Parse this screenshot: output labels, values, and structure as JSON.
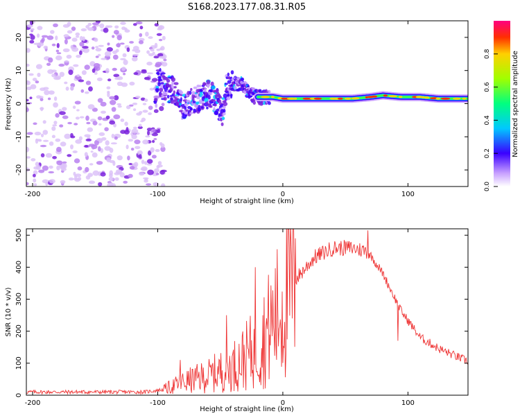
{
  "figure_title": "S168.2023.177.08.31.R05",
  "colors": {
    "snr_line": "#ee3333",
    "axis": "#000000"
  },
  "chart_data": [
    {
      "type": "heatmap",
      "name": "spectrogram",
      "xlabel": "Height of straight line (km)",
      "ylabel": "Frequency (Hz)",
      "xlim": [
        -205,
        148
      ],
      "ylim": [
        -25,
        25
      ],
      "xticks": [
        -200,
        -100,
        0,
        100
      ],
      "yticks": [
        -20,
        -10,
        0,
        10,
        20
      ],
      "xtick_labels": [
        "-200",
        "-100",
        "0",
        "100"
      ],
      "ytick_labels": [
        "-20",
        "-10",
        "0",
        "10",
        "20"
      ],
      "noise_region_km": [
        -205,
        -100
      ],
      "signal_track": [
        {
          "x": -100,
          "y": 8
        },
        {
          "x": -95,
          "y": 5
        },
        {
          "x": -88,
          "y": 4
        },
        {
          "x": -80,
          "y": -1
        },
        {
          "x": -72,
          "y": 1
        },
        {
          "x": -65,
          "y": 2
        },
        {
          "x": -58,
          "y": 3
        },
        {
          "x": -52,
          "y": 0
        },
        {
          "x": -48,
          "y": -3
        },
        {
          "x": -45,
          "y": 5
        },
        {
          "x": -38,
          "y": 6
        },
        {
          "x": -32,
          "y": 6
        },
        {
          "x": -28,
          "y": 4
        },
        {
          "x": -22,
          "y": 2
        },
        {
          "x": -15,
          "y": 2
        },
        {
          "x": -8,
          "y": 2
        },
        {
          "x": 0,
          "y": 1.5
        },
        {
          "x": 10,
          "y": 1.5
        },
        {
          "x": 20,
          "y": 1.5
        },
        {
          "x": 35,
          "y": 1.5
        },
        {
          "x": 55,
          "y": 1.5
        },
        {
          "x": 70,
          "y": 2
        },
        {
          "x": 80,
          "y": 2.5
        },
        {
          "x": 95,
          "y": 2
        },
        {
          "x": 110,
          "y": 2
        },
        {
          "x": 125,
          "y": 1.5
        },
        {
          "x": 148,
          "y": 1.5
        }
      ],
      "colorbar": {
        "label": "Normalized spectral amplitude",
        "ticks": [
          "0.0",
          "0.2",
          "0.4",
          "0.6",
          "0.8"
        ],
        "range": [
          0,
          1
        ]
      }
    },
    {
      "type": "line",
      "name": "snr",
      "xlabel": "Height of straight line (km)",
      "ylabel": "SNR (10 * v/v)",
      "xlim": [
        -205,
        148
      ],
      "ylim": [
        0,
        520
      ],
      "xticks": [
        -200,
        -100,
        0,
        100
      ],
      "yticks": [
        0,
        100,
        200,
        300,
        400,
        500
      ],
      "xtick_labels": [
        "-200",
        "-100",
        "0",
        "100"
      ],
      "ytick_labels": [
        "0",
        "100",
        "200",
        "300",
        "400",
        "500"
      ],
      "envelope": [
        {
          "x": -205,
          "y": 10
        },
        {
          "x": -110,
          "y": 10
        },
        {
          "x": -95,
          "y": 18
        },
        {
          "x": -80,
          "y": 40
        },
        {
          "x": -60,
          "y": 60
        },
        {
          "x": -40,
          "y": 90
        },
        {
          "x": -20,
          "y": 150
        },
        {
          "x": 0,
          "y": 280
        },
        {
          "x": 10,
          "y": 360
        },
        {
          "x": 25,
          "y": 430
        },
        {
          "x": 40,
          "y": 460
        },
        {
          "x": 55,
          "y": 460
        },
        {
          "x": 68,
          "y": 450
        },
        {
          "x": 80,
          "y": 380
        },
        {
          "x": 95,
          "y": 260
        },
        {
          "x": 110,
          "y": 180
        },
        {
          "x": 125,
          "y": 145
        },
        {
          "x": 148,
          "y": 105
        }
      ],
      "spikes": [
        {
          "x": -82,
          "y": 110
        },
        {
          "x": -45,
          "y": 250
        },
        {
          "x": -22,
          "y": 400
        },
        {
          "x": 10,
          "y": 490
        },
        {
          "x": 68,
          "y": 515
        },
        {
          "x": 92,
          "y": 170
        }
      ]
    }
  ]
}
